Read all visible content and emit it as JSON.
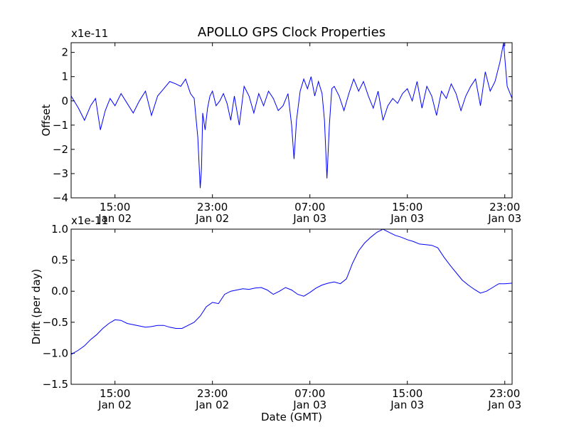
{
  "figure": {
    "title": "APOLLO GPS Clock Properties",
    "xlabel": "Date (GMT)"
  },
  "chart_data": [
    {
      "type": "line",
      "name": "offset",
      "ylabel": "Offset",
      "exponent_label": "x1e-11",
      "x_ticks": [
        {
          "time": "15:00",
          "date": "Jan 02"
        },
        {
          "time": "23:00",
          "date": "Jan 02"
        },
        {
          "time": "07:00",
          "date": "Jan 03"
        },
        {
          "time": "15:00",
          "date": "Jan 03"
        },
        {
          "time": "23:00",
          "date": "Jan 03"
        }
      ],
      "x_tick_hours": [
        15,
        23,
        31,
        39,
        47
      ],
      "xlim_hours": [
        11.4,
        47.6
      ],
      "xlim_note": "hours since 2000-Jan-02 00:00 GMT",
      "ylim": [
        -4,
        2.4
      ],
      "y_ticks": [
        -4,
        -3,
        -2,
        -1,
        0,
        1,
        2
      ],
      "y_tick_labels": [
        "−4",
        "−3",
        "−2",
        "−1",
        "0",
        "1",
        "2"
      ],
      "color": "#0000ff",
      "x": [
        11.4,
        12.0,
        12.5,
        13.0,
        13.4,
        13.8,
        14.2,
        14.6,
        15.0,
        15.5,
        16.0,
        16.5,
        17.0,
        17.5,
        18.0,
        18.5,
        19.0,
        19.5,
        20.0,
        20.4,
        20.8,
        21.2,
        21.5,
        21.8,
        22.0,
        22.1,
        22.2,
        22.4,
        22.6,
        22.8,
        23.0,
        23.3,
        23.6,
        23.9,
        24.2,
        24.5,
        24.8,
        25.2,
        25.6,
        26.0,
        26.4,
        26.8,
        27.2,
        27.6,
        28.0,
        28.4,
        28.8,
        29.2,
        29.5,
        29.7,
        29.9,
        30.2,
        30.5,
        30.8,
        31.1,
        31.4,
        31.7,
        32.0,
        32.2,
        32.4,
        32.6,
        32.8,
        33.0,
        33.4,
        33.8,
        34.2,
        34.6,
        35.0,
        35.4,
        35.8,
        36.2,
        36.6,
        37.0,
        37.4,
        37.8,
        38.2,
        38.6,
        39.0,
        39.4,
        39.8,
        40.2,
        40.6,
        41.0,
        41.4,
        41.8,
        42.2,
        42.6,
        43.0,
        43.4,
        43.8,
        44.2,
        44.6,
        45.0,
        45.4,
        45.8,
        46.2,
        46.6,
        46.9,
        47.2,
        47.6
      ],
      "y": [
        0.2,
        -0.3,
        -0.8,
        -0.2,
        0.1,
        -1.2,
        -0.4,
        0.1,
        -0.2,
        0.3,
        -0.1,
        -0.5,
        0.0,
        0.4,
        -0.6,
        0.2,
        0.5,
        0.8,
        0.7,
        0.6,
        0.9,
        0.3,
        0.1,
        -1.5,
        -3.6,
        -2.8,
        -0.5,
        -1.2,
        -0.3,
        0.2,
        0.4,
        -0.2,
        0.0,
        0.3,
        -0.1,
        -0.8,
        0.2,
        -1.0,
        0.6,
        0.2,
        -0.5,
        0.3,
        -0.2,
        0.4,
        0.1,
        -0.4,
        -0.2,
        0.3,
        -1.0,
        -2.4,
        -0.8,
        0.4,
        0.9,
        0.5,
        1.0,
        0.2,
        0.8,
        0.3,
        -0.8,
        -3.2,
        -1.0,
        0.5,
        0.6,
        0.2,
        -0.4,
        0.3,
        0.9,
        0.4,
        0.8,
        0.2,
        -0.3,
        0.4,
        -0.8,
        -0.2,
        0.1,
        -0.1,
        0.3,
        0.5,
        0.0,
        0.8,
        -0.3,
        0.6,
        0.2,
        -0.6,
        0.4,
        0.1,
        0.7,
        0.3,
        -0.4,
        0.2,
        0.6,
        0.9,
        -0.2,
        1.2,
        0.4,
        0.8,
        1.6,
        2.4,
        0.6,
        0.1
      ]
    },
    {
      "type": "line",
      "name": "drift",
      "ylabel": "Drift (per day)",
      "exponent_label": "x1e-11",
      "x_ticks": [
        {
          "time": "15:00",
          "date": "Jan 02"
        },
        {
          "time": "23:00",
          "date": "Jan 02"
        },
        {
          "time": "07:00",
          "date": "Jan 03"
        },
        {
          "time": "15:00",
          "date": "Jan 03"
        },
        {
          "time": "23:00",
          "date": "Jan 03"
        }
      ],
      "x_tick_hours": [
        15,
        23,
        31,
        39,
        47
      ],
      "xlim_hours": [
        11.4,
        47.6
      ],
      "ylim": [
        -1.5,
        1.0
      ],
      "y_ticks": [
        -1.5,
        -1.0,
        -0.5,
        0.0,
        0.5,
        1.0
      ],
      "y_tick_labels": [
        "−1.5",
        "−1.0",
        "−0.5",
        "0.0",
        "0.5",
        "1.0"
      ],
      "color": "#0000ff",
      "x": [
        11.4,
        12.0,
        12.5,
        13.0,
        13.5,
        14.0,
        14.5,
        15.0,
        15.5,
        16.0,
        16.5,
        17.0,
        17.5,
        18.0,
        18.5,
        19.0,
        19.5,
        20.0,
        20.5,
        21.0,
        21.5,
        22.0,
        22.5,
        23.0,
        23.5,
        24.0,
        24.5,
        25.0,
        25.5,
        26.0,
        26.5,
        27.0,
        27.5,
        28.0,
        28.5,
        29.0,
        29.5,
        30.0,
        30.5,
        31.0,
        31.5,
        32.0,
        32.5,
        33.0,
        33.5,
        34.0,
        34.5,
        35.0,
        35.5,
        36.0,
        36.5,
        37.0,
        37.5,
        38.0,
        38.5,
        39.0,
        39.5,
        40.0,
        40.5,
        41.0,
        41.5,
        42.0,
        42.5,
        43.0,
        43.5,
        44.0,
        44.5,
        45.0,
        45.5,
        46.0,
        46.5,
        47.0,
        47.6
      ],
      "y": [
        -1.02,
        -0.95,
        -0.88,
        -0.78,
        -0.7,
        -0.6,
        -0.52,
        -0.46,
        -0.47,
        -0.52,
        -0.54,
        -0.56,
        -0.58,
        -0.57,
        -0.55,
        -0.55,
        -0.58,
        -0.6,
        -0.6,
        -0.55,
        -0.5,
        -0.4,
        -0.25,
        -0.18,
        -0.2,
        -0.05,
        0.0,
        0.02,
        0.04,
        0.03,
        0.05,
        0.06,
        0.02,
        -0.05,
        0.0,
        0.06,
        0.02,
        -0.05,
        -0.08,
        -0.02,
        0.05,
        0.1,
        0.13,
        0.15,
        0.12,
        0.2,
        0.45,
        0.65,
        0.78,
        0.87,
        0.95,
        1.0,
        0.95,
        0.9,
        0.87,
        0.83,
        0.8,
        0.76,
        0.75,
        0.74,
        0.7,
        0.55,
        0.42,
        0.3,
        0.18,
        0.1,
        0.03,
        -0.03,
        0.0,
        0.06,
        0.12,
        0.12,
        0.13
      ]
    }
  ]
}
